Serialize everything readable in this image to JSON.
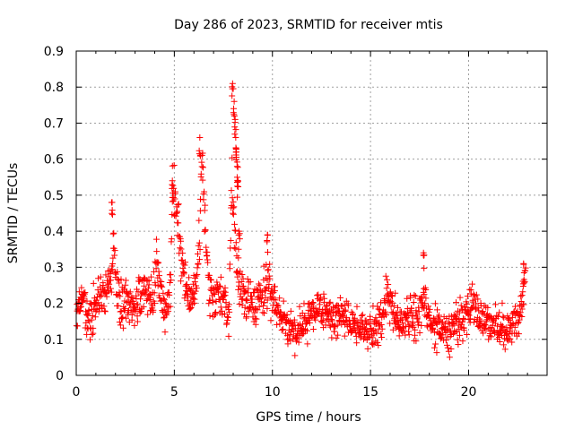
{
  "chart_data": {
    "type": "scatter",
    "title": "Day 286 of 2023, SRMTID for receiver mtis",
    "xlabel": "GPS time / hours",
    "ylabel": "SRMTID / TECUs",
    "xlim": [
      0,
      24
    ],
    "ylim": [
      0,
      0.9
    ],
    "xticks": [
      "0",
      "5",
      "10",
      "15",
      "20"
    ],
    "yticks": [
      "0",
      "0.1",
      "0.2",
      "0.3",
      "0.4",
      "0.5",
      "0.6",
      "0.7",
      "0.8",
      "0.9"
    ],
    "grid": true,
    "marker": "+",
    "color": "#ff0000",
    "series": [
      {
        "name": "SRMTID",
        "anchors": {
          "x": [
            0,
            0.2,
            0.4,
            0.6,
            0.8,
            1.0,
            1.3,
            1.6,
            1.8,
            1.9,
            2.0,
            2.2,
            2.5,
            2.8,
            3.0,
            3.2,
            3.5,
            3.8,
            4.0,
            4.1,
            4.3,
            4.5,
            4.8,
            4.9,
            5.0,
            5.1,
            5.2,
            5.3,
            5.4,
            5.5,
            5.7,
            5.9,
            6.1,
            6.3,
            6.4,
            6.5,
            6.6,
            6.8,
            7.0,
            7.3,
            7.6,
            7.8,
            7.9,
            8.0,
            8.1,
            8.2,
            8.3,
            8.5,
            8.8,
            9.0,
            9.3,
            9.6,
            9.8,
            10.0,
            10.3,
            10.6,
            10.9,
            11.2,
            11.6,
            12.0,
            12.5,
            13.0,
            13.5,
            14.0,
            14.5,
            15.0,
            15.5,
            15.8,
            16.0,
            16.3,
            16.6,
            17.0,
            17.4,
            17.7,
            18.0,
            18.5,
            19.0,
            19.5,
            20.0,
            20.3,
            20.6,
            21.0,
            21.5,
            22.0,
            22.3,
            22.6,
            22.9
          ],
          "y": [
            0.17,
            0.22,
            0.2,
            0.15,
            0.17,
            0.21,
            0.2,
            0.24,
            0.28,
            0.38,
            0.28,
            0.2,
            0.2,
            0.17,
            0.2,
            0.21,
            0.23,
            0.22,
            0.26,
            0.34,
            0.22,
            0.16,
            0.23,
            0.5,
            0.52,
            0.45,
            0.44,
            0.35,
            0.3,
            0.27,
            0.22,
            0.21,
            0.25,
            0.4,
            0.62,
            0.55,
            0.38,
            0.22,
            0.22,
            0.21,
            0.2,
            0.16,
            0.52,
            0.5,
            0.38,
            0.3,
            0.26,
            0.23,
            0.22,
            0.2,
            0.2,
            0.22,
            0.26,
            0.21,
            0.17,
            0.15,
            0.13,
            0.12,
            0.14,
            0.17,
            0.18,
            0.15,
            0.16,
            0.14,
            0.13,
            0.12,
            0.14,
            0.22,
            0.2,
            0.16,
            0.14,
            0.16,
            0.15,
            0.2,
            0.14,
            0.13,
            0.12,
            0.15,
            0.17,
            0.2,
            0.16,
            0.14,
            0.13,
            0.12,
            0.15,
            0.17,
            0.26
          ]
        },
        "spread": 0.035,
        "point_count": 1400,
        "peaks": [
          {
            "x": 1.83,
            "y": 0.48
          },
          {
            "x": 4.9,
            "y": 0.54
          },
          {
            "x": 6.3,
            "y": 0.66
          },
          {
            "x": 7.97,
            "y": 0.81
          },
          {
            "x": 8.05,
            "y": 0.76
          },
          {
            "x": 8.1,
            "y": 0.71
          },
          {
            "x": 8.13,
            "y": 0.66
          },
          {
            "x": 8.16,
            "y": 0.62
          },
          {
            "x": 8.2,
            "y": 0.58
          },
          {
            "x": 8.24,
            "y": 0.54
          },
          {
            "x": 8.3,
            "y": 0.4
          },
          {
            "x": 9.75,
            "y": 0.39
          },
          {
            "x": 17.7,
            "y": 0.34
          },
          {
            "x": 22.8,
            "y": 0.31
          }
        ]
      }
    ]
  }
}
